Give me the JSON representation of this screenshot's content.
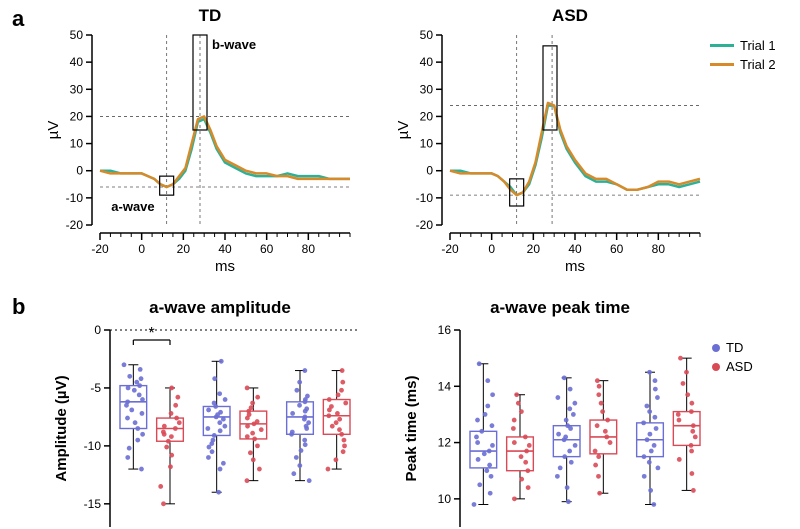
{
  "panel_letters": {
    "a": "a",
    "b": "b"
  },
  "panel_a": {
    "left": {
      "title": "TD",
      "x": [
        -20,
        -15,
        -10,
        -5,
        0,
        3,
        6,
        9,
        12,
        15,
        18,
        21,
        24,
        27,
        30,
        33,
        36,
        40,
        45,
        50,
        55,
        60,
        65,
        70,
        75,
        80,
        85,
        90,
        95,
        100
      ],
      "trial1": [
        0,
        0,
        -1,
        -1,
        -1,
        -2,
        -3,
        -5,
        -6,
        -5,
        -3,
        0,
        8,
        18,
        19,
        14,
        8,
        3,
        1,
        -1,
        -2,
        -2,
        -2,
        -1,
        -2,
        -2,
        -2,
        -3,
        -3,
        -3
      ],
      "trial2": [
        0,
        -1,
        -1,
        -1,
        -1,
        -2,
        -3,
        -5,
        -6,
        -5,
        -2,
        1,
        10,
        19,
        20,
        15,
        9,
        4,
        2,
        0,
        -1,
        -1,
        -2,
        -2,
        -3,
        -3,
        -3,
        -3,
        -3,
        -3
      ],
      "a_box": {
        "x": 12,
        "y_top": -2,
        "y_bot": -9
      },
      "b_box": {
        "x": 28,
        "y_top": 50,
        "y_bot": 15
      },
      "a_label": "a-wave",
      "b_label": "b-wave",
      "h_dash": [
        -6,
        20
      ],
      "v_dash": [
        12,
        28
      ]
    },
    "right": {
      "title": "ASD",
      "x": [
        -20,
        -15,
        -10,
        -5,
        0,
        3,
        6,
        9,
        12,
        15,
        18,
        21,
        24,
        27,
        30,
        33,
        36,
        40,
        45,
        50,
        55,
        60,
        65,
        70,
        75,
        80,
        85,
        90,
        95,
        100
      ],
      "trial1": [
        0,
        0,
        -1,
        -1,
        -1,
        -2,
        -4,
        -6,
        -9,
        -8,
        -5,
        2,
        12,
        24,
        24,
        14,
        8,
        3,
        -2,
        -4,
        -4,
        -5,
        -7,
        -7,
        -6,
        -5,
        -5,
        -6,
        -5,
        -4
      ],
      "trial2": [
        0,
        -1,
        -1,
        -1,
        -1,
        -2,
        -4,
        -7,
        -9,
        -8,
        -4,
        3,
        14,
        25,
        24,
        15,
        9,
        4,
        -1,
        -3,
        -3,
        -5,
        -7,
        -7,
        -6,
        -4,
        -4,
        -5,
        -4,
        -3
      ],
      "a_box": {
        "x": 12,
        "y_top": -3,
        "y_bot": -13
      },
      "b_box": {
        "x": 28,
        "y_top": 46,
        "y_bot": 15
      },
      "h_dash": [
        -9,
        24
      ],
      "v_dash": [
        12,
        29
      ]
    },
    "legend": {
      "trial1": "Trial 1",
      "trial2": "Trial 2"
    },
    "colors": {
      "trial1": "#2eb097",
      "trial2": "#d68a2a",
      "axis": "#000000",
      "dash": "#555555",
      "box": "#000000"
    },
    "ylim": [
      -20,
      50
    ],
    "yticks": [
      -20,
      -10,
      0,
      10,
      20,
      30,
      40,
      50
    ],
    "xlim": [
      -20,
      100
    ],
    "xticks_major": [
      -20,
      0,
      20,
      40,
      60,
      80
    ],
    "xticks_minor_step": 5,
    "xlabel": "ms",
    "ylabel": "µV",
    "label_fontsize": 15,
    "tick_fontsize": 12
  },
  "panel_b": {
    "left": {
      "title": "a-wave amplitude",
      "ylabel": "Amplitude (µV)",
      "ylim": [
        -17,
        0
      ],
      "yticks": [
        0,
        -5,
        -10,
        -15
      ],
      "dotted_zero": 0,
      "sig": {
        "group": 0,
        "label": "*"
      },
      "groups": [
        {
          "td": {
            "min": -12,
            "q1": -8.5,
            "med": -6.2,
            "q3": -4.8,
            "max": -3.0,
            "pts": [
              -3.0,
              -3.4,
              -4.0,
              -4.2,
              -4.5,
              -4.8,
              -5.0,
              -5.2,
              -5.6,
              -6.0,
              -6.2,
              -6.5,
              -6.9,
              -7.2,
              -7.6,
              -8.0,
              -8.5,
              -9.0,
              -9.5,
              -10.2,
              -11.0,
              -12.0
            ]
          },
          "asd": {
            "min": -15,
            "q1": -9.6,
            "med": -8.5,
            "q3": -7.6,
            "max": -5.0,
            "pts": [
              -5.0,
              -5.8,
              -6.5,
              -7.2,
              -7.6,
              -8.0,
              -8.3,
              -8.5,
              -8.8,
              -9.0,
              -9.2,
              -9.6,
              -10.1,
              -10.8,
              -11.8,
              -13.5,
              -15.0
            ]
          }
        },
        {
          "td": {
            "min": -14,
            "q1": -9.1,
            "med": -7.5,
            "q3": -6.6,
            "max": -2.7,
            "pts": [
              -2.7,
              -4.2,
              -5.5,
              -6.0,
              -6.3,
              -6.6,
              -6.9,
              -7.1,
              -7.3,
              -7.5,
              -7.7,
              -8.0,
              -8.3,
              -8.5,
              -8.7,
              -9.1,
              -9.5,
              -9.8,
              -10.1,
              -10.5,
              -11.0,
              -11.5,
              -12.0,
              -14.0
            ]
          },
          "asd": {
            "min": -13,
            "q1": -9.4,
            "med": -8.1,
            "q3": -7.0,
            "max": -5.0,
            "pts": [
              -5.0,
              -5.8,
              -6.3,
              -6.7,
              -7.0,
              -7.3,
              -7.6,
              -7.9,
              -8.1,
              -8.3,
              -8.6,
              -8.9,
              -9.2,
              -9.4,
              -10.0,
              -10.6,
              -11.2,
              -12.0,
              -13.0
            ]
          }
        },
        {
          "td": {
            "min": -13,
            "q1": -9.0,
            "med": -7.5,
            "q3": -6.2,
            "max": -3.5,
            "pts": [
              -3.5,
              -4.5,
              -5.2,
              -5.7,
              -6.0,
              -6.2,
              -6.5,
              -6.8,
              -7.0,
              -7.2,
              -7.5,
              -7.7,
              -8.0,
              -8.3,
              -8.5,
              -8.8,
              -9.0,
              -9.5,
              -9.9,
              -10.4,
              -11.0,
              -11.7,
              -12.4,
              -13.0
            ]
          },
          "asd": {
            "min": -12,
            "q1": -9.0,
            "med": -7.4,
            "q3": -6.0,
            "max": -3.5,
            "pts": [
              -3.5,
              -4.5,
              -5.2,
              -5.6,
              -6.0,
              -6.3,
              -6.6,
              -6.9,
              -7.2,
              -7.4,
              -7.7,
              -8.0,
              -8.3,
              -8.6,
              -9.0,
              -9.5,
              -10.0,
              -10.5,
              -11.2,
              -12.0
            ]
          }
        }
      ]
    },
    "right": {
      "title": "a-wave peak time",
      "ylabel": "Peak time (ms)",
      "ylim": [
        9,
        16
      ],
      "yticks": [
        10,
        12,
        14,
        16
      ],
      "groups": [
        {
          "td": {
            "min": 9.8,
            "q1": 11.1,
            "med": 11.7,
            "q3": 12.4,
            "max": 14.8,
            "pts": [
              9.8,
              10.2,
              10.5,
              10.8,
              11.0,
              11.2,
              11.4,
              11.6,
              11.7,
              11.9,
              12.0,
              12.2,
              12.4,
              12.6,
              12.8,
              13.0,
              13.3,
              13.7,
              14.2,
              14.8
            ]
          },
          "asd": {
            "min": 10.0,
            "q1": 11.0,
            "med": 11.7,
            "q3": 12.2,
            "max": 13.7,
            "pts": [
              10.0,
              10.4,
              10.7,
              11.0,
              11.3,
              11.5,
              11.7,
              11.9,
              12.0,
              12.2,
              12.5,
              12.8,
              13.1,
              13.4,
              13.7
            ]
          }
        },
        {
          "td": {
            "min": 9.9,
            "q1": 11.5,
            "med": 12.1,
            "q3": 12.6,
            "max": 14.3,
            "pts": [
              9.9,
              10.4,
              10.8,
              11.1,
              11.3,
              11.5,
              11.7,
              11.9,
              12.1,
              12.2,
              12.3,
              12.5,
              12.6,
              12.8,
              13.0,
              13.2,
              13.4,
              13.6,
              13.9,
              14.3
            ]
          },
          "asd": {
            "min": 10.2,
            "q1": 11.6,
            "med": 12.2,
            "q3": 12.8,
            "max": 14.2,
            "pts": [
              10.2,
              10.8,
              11.2,
              11.5,
              11.7,
              12.0,
              12.2,
              12.4,
              12.6,
              12.8,
              13.1,
              13.4,
              13.7,
              14.0,
              14.2
            ]
          }
        },
        {
          "td": {
            "min": 9.8,
            "q1": 11.5,
            "med": 12.1,
            "q3": 12.7,
            "max": 14.5,
            "pts": [
              9.8,
              10.3,
              10.8,
              11.1,
              11.3,
              11.5,
              11.7,
              11.9,
              12.1,
              12.3,
              12.5,
              12.7,
              12.9,
              13.1,
              13.3,
              13.6,
              13.9,
              14.2,
              14.5
            ]
          },
          "asd": {
            "min": 10.3,
            "q1": 11.9,
            "med": 12.6,
            "q3": 13.1,
            "max": 15.0,
            "pts": [
              10.3,
              10.9,
              11.4,
              11.7,
              11.9,
              12.2,
              12.4,
              12.6,
              12.8,
              13.0,
              13.1,
              13.4,
              13.7,
              14.1,
              14.5,
              15.0
            ]
          }
        }
      ]
    },
    "legend": {
      "td": "TD",
      "asd": "ASD"
    },
    "colors": {
      "td": "#6b6fd4",
      "asd": "#d94a57",
      "axis": "#000000",
      "whisker": "#000000"
    },
    "box_width": 0.32,
    "dot_radius": 2.4,
    "jitter": 0.08,
    "tick_fontsize": 12,
    "label_fontsize": 15
  }
}
